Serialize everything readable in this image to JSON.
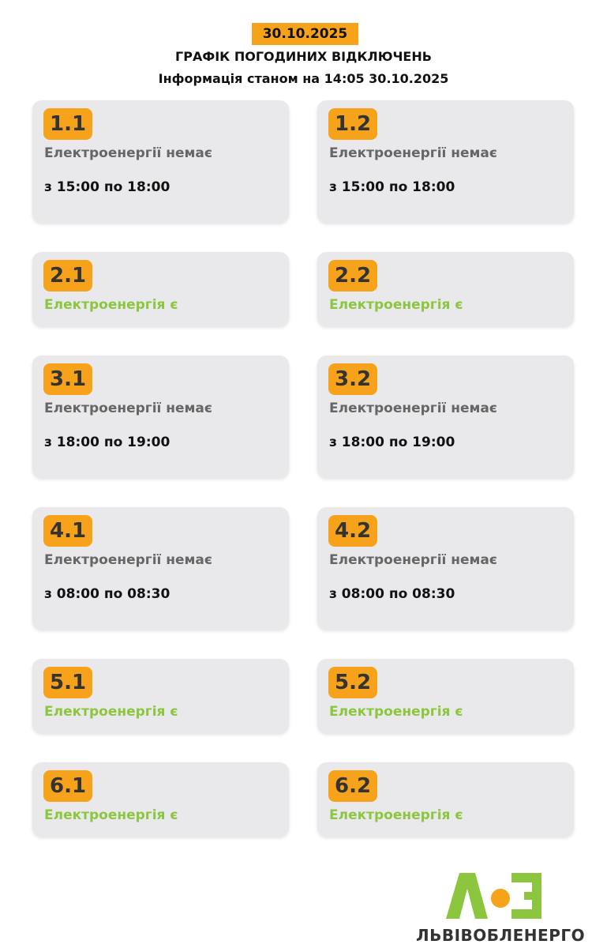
{
  "header": {
    "date": "30.10.2025",
    "title": "ГРАФІК ПОГОДИНИХ ВІДКЛЮЧЕНЬ",
    "info": "Інформація станом на 14:05 30.10.2025"
  },
  "colors": {
    "accent": "#f7a21b",
    "power_on": "#8cc63f",
    "power_off": "#666666",
    "card_bg": "#e9e9eb"
  },
  "groups": [
    {
      "id": "1.1",
      "status": "Електроенергії немає",
      "time": "з 15:00 по 18:00",
      "power": false
    },
    {
      "id": "1.2",
      "status": "Електроенергії немає",
      "time": "з 15:00 по 18:00",
      "power": false
    },
    {
      "id": "2.1",
      "status": "Електроенергія є",
      "power": true
    },
    {
      "id": "2.2",
      "status": "Електроенергія є",
      "power": true
    },
    {
      "id": "3.1",
      "status": "Електроенергії немає",
      "time": "з 18:00 по 19:00",
      "power": false
    },
    {
      "id": "3.2",
      "status": "Електроенергії немає",
      "time": "з 18:00 по 19:00",
      "power": false
    },
    {
      "id": "4.1",
      "status": "Електроенергії немає",
      "time": "з 08:00 по 08:30",
      "power": false
    },
    {
      "id": "4.2",
      "status": "Електроенергії немає",
      "time": "з 08:00 по 08:30",
      "power": false
    },
    {
      "id": "5.1",
      "status": "Електроенергія є",
      "power": true
    },
    {
      "id": "5.2",
      "status": "Електроенергія є",
      "power": true
    },
    {
      "id": "6.1",
      "status": "Електроенергія є",
      "power": true
    },
    {
      "id": "6.2",
      "status": "Електроенергія є",
      "power": true
    }
  ],
  "footer": {
    "logo_text": "ЛЬВІВОБЛЕНЕРГО",
    "logo_mark": "ЛОЕ"
  }
}
